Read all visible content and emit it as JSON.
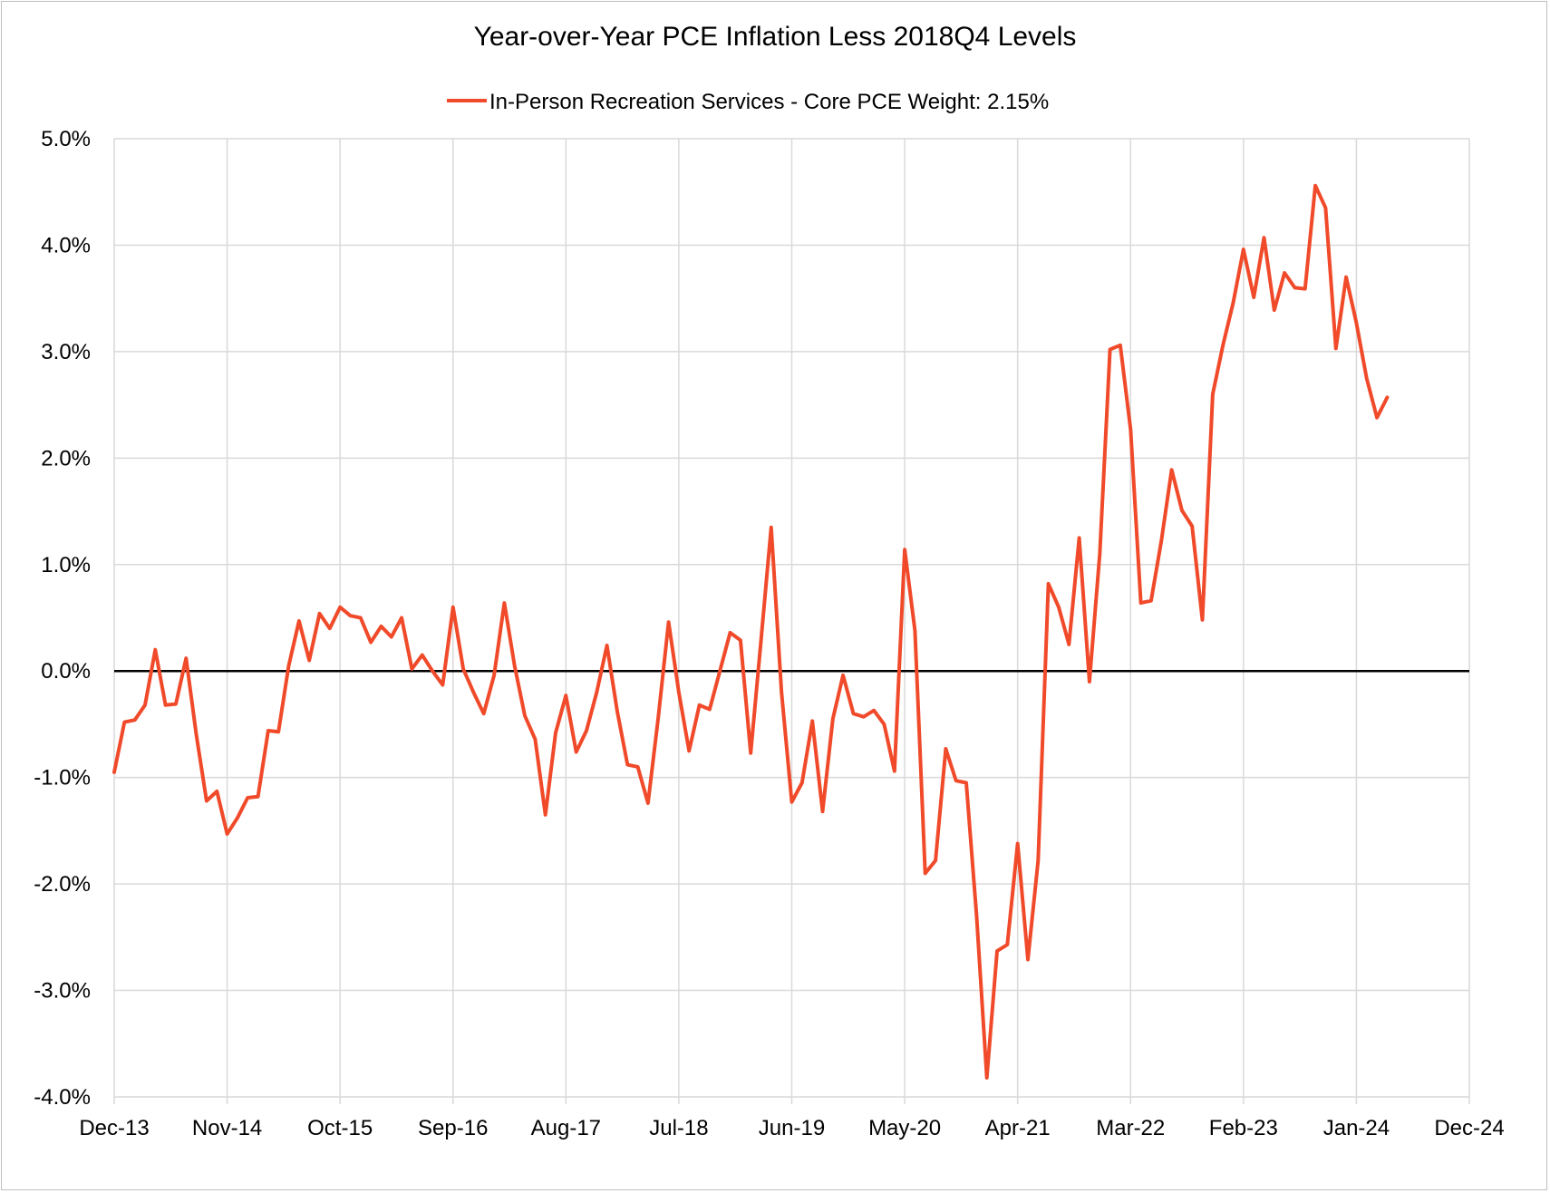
{
  "chart_data": {
    "type": "line",
    "title": "Year-over-Year PCE Inflation Less 2018Q4 Levels",
    "xlabel": "",
    "ylabel": "",
    "ylim": [
      -4.0,
      5.0
    ],
    "y_ticks": [
      5.0,
      4.0,
      3.0,
      2.0,
      1.0,
      0.0,
      -1.0,
      -2.0,
      -3.0,
      -4.0
    ],
    "y_tick_labels": [
      "5.0%",
      "4.0%",
      "3.0%",
      "2.0%",
      "1.0%",
      "0.0%",
      "-1.0%",
      "-2.0%",
      "-3.0%",
      "-4.0%"
    ],
    "x_tick_labels": [
      "Dec-13",
      "Nov-14",
      "Oct-15",
      "Sep-16",
      "Aug-17",
      "Jul-18",
      "Jun-19",
      "May-20",
      "Apr-21",
      "Mar-22",
      "Feb-23",
      "Jan-24",
      "Dec-24"
    ],
    "x_range_months": [
      0,
      132
    ],
    "grid": true,
    "legend_position": "top-center",
    "series": [
      {
        "name": "In-Person Recreation Services - Core PCE Weight: 2.15%",
        "color": "#f04a2a",
        "month_index": [
          0,
          1,
          2,
          3,
          4,
          5,
          6,
          7,
          8,
          9,
          10,
          11,
          12,
          13,
          14,
          15,
          16,
          17,
          18,
          19,
          20,
          21,
          22,
          23,
          24,
          25,
          26,
          27,
          28,
          29,
          30,
          31,
          32,
          33,
          34,
          35,
          36,
          37,
          38,
          39,
          40,
          41,
          42,
          43,
          44,
          45,
          46,
          47,
          48,
          49,
          50,
          51,
          52,
          53,
          54,
          55,
          56,
          57,
          58,
          59,
          60,
          61,
          62,
          63,
          64,
          65,
          66,
          67,
          68,
          69,
          70,
          71,
          72,
          73,
          74,
          75,
          76,
          77,
          78,
          79,
          80,
          81,
          82,
          83,
          84,
          85,
          86,
          87,
          88,
          89,
          90,
          91,
          92,
          93,
          94,
          95,
          96,
          97,
          98,
          99,
          100,
          101,
          102,
          103,
          104,
          105,
          106,
          107,
          108,
          109,
          110,
          111,
          112,
          113,
          114,
          115,
          116,
          117,
          118,
          119,
          120,
          121,
          122,
          123,
          124
        ],
        "values": [
          -0.95,
          -0.48,
          -0.46,
          -0.32,
          0.2,
          -0.32,
          -0.31,
          0.12,
          -0.6,
          -1.22,
          -1.13,
          -1.53,
          -1.38,
          -1.19,
          -1.18,
          -0.56,
          -0.57,
          0.05,
          0.47,
          0.1,
          0.54,
          0.4,
          0.6,
          0.52,
          0.5,
          0.27,
          0.42,
          0.32,
          0.5,
          0.02,
          0.15,
          0.0,
          -0.13,
          0.6,
          0.02,
          -0.2,
          -0.4,
          -0.04,
          0.64,
          0.05,
          -0.42,
          -0.64,
          -1.35,
          -0.58,
          -0.23,
          -0.76,
          -0.56,
          -0.2,
          0.24,
          -0.38,
          -0.88,
          -0.9,
          -1.24,
          -0.43,
          0.46,
          -0.2,
          -0.75,
          -0.32,
          -0.36,
          0.0,
          0.36,
          0.29,
          -0.77,
          0.28,
          1.35,
          -0.2,
          -1.23,
          -1.05,
          -0.47,
          -1.32,
          -0.45,
          -0.04,
          -0.4,
          -0.43,
          -0.37,
          -0.5,
          -0.94,
          1.14,
          0.38,
          -1.9,
          -1.78,
          -0.73,
          -1.03,
          -1.05,
          -2.3,
          -3.82,
          -2.63,
          -2.57,
          -1.62,
          -2.71,
          -1.78,
          0.82,
          0.6,
          0.25,
          1.25,
          -0.1,
          1.1,
          3.02,
          3.06,
          2.27,
          0.64,
          0.66,
          1.22,
          1.89,
          1.51,
          1.36,
          0.48,
          2.6,
          3.06,
          3.46,
          3.96,
          3.51,
          4.07,
          3.39,
          3.74,
          3.6,
          3.59,
          4.56,
          4.35,
          3.03,
          3.7,
          3.27,
          2.75,
          2.38,
          2.57
        ]
      }
    ]
  }
}
